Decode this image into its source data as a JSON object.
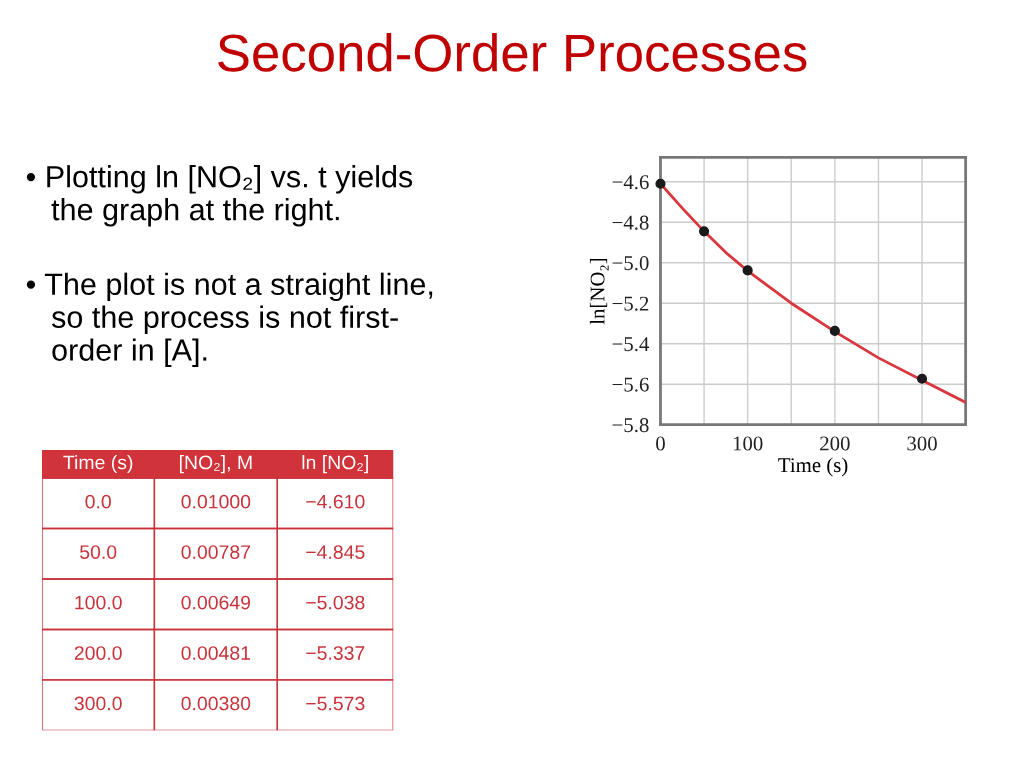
{
  "chart_data": [
    {
      "type": "scatter",
      "title": "Second-Order Processes",
      "xlabel": "Time (s)",
      "ylabel": "ln[NO₂]",
      "annotations": [
        "• Plotting ln [NO₂] vs. t yields\n   the graph at the right.",
        "• The plot is not a straight line,\n   so the process is not first-\n   order in [A]."
      ],
      "series": [
        {
          "type": "line",
          "color": "#d9363e",
          "line_style": "solid",
          "marker": "none",
          "x": [
            0,
            25,
            50,
            75,
            100,
            150,
            200,
            250,
            300,
            350
          ],
          "values": [
            -4.61,
            -4.73,
            -4.845,
            -4.95,
            -5.04,
            -5.2,
            -5.34,
            -5.47,
            -5.58,
            -5.69
          ]
        },
        {
          "type": "scatter",
          "color": "#1a1a1a",
          "marker": "circle",
          "x": [
            0,
            50,
            100,
            200,
            300
          ],
          "values": [
            -4.61,
            -4.845,
            -5.038,
            -5.337,
            -5.573
          ]
        }
      ],
      "xlim": [
        0,
        350
      ],
      "ylim": [
        -5.8,
        -4.48
      ],
      "xticks": [
        0,
        {
          "value": 50,
          "label": null
        },
        100,
        {
          "value": 150,
          "label": null
        },
        200,
        {
          "value": 250,
          "label": null
        },
        300
      ],
      "yticks": [
        {
          "value": -5.8,
          "label": "−5.8"
        },
        {
          "value": -5.6,
          "label": "−5.6"
        },
        {
          "value": -5.4,
          "label": "−5.4"
        },
        {
          "value": -5.2,
          "label": "−5.2"
        },
        {
          "value": -5.0,
          "label": "−5.0"
        },
        {
          "value": -4.8,
          "label": "−4.8"
        },
        {
          "value": -4.6,
          "label": "−4.6"
        }
      ],
      "grid": true,
      "legend": false
    },
    {
      "type": "other",
      "categories": [
        "Time (s)",
        "[NO₂], M",
        "ln [NO₂]"
      ],
      "annotations": [
        "0.0",
        "0.01000",
        "−4.610",
        "50.0",
        "0.00787",
        "−4.845",
        "100.0",
        "0.00649",
        "−5.038",
        "200.0",
        "0.00481",
        "−5.337",
        "300.0",
        "0.00380",
        "−5.573"
      ]
    }
  ]
}
